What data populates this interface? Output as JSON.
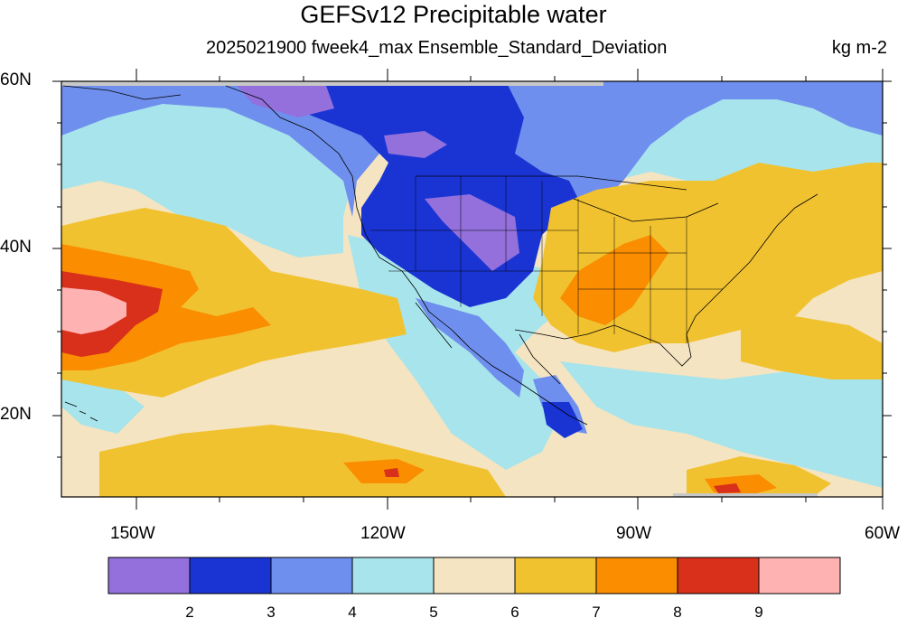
{
  "title": "GEFSv12 Precipitable water",
  "subtitle": "2025021900 fweek4_max Ensemble_Standard_Deviation",
  "units": "kg m-2",
  "lat_labels": [
    "60N",
    "40N",
    "20N"
  ],
  "lon_labels": [
    "150W",
    "120W",
    "90W",
    "60W"
  ],
  "legend": {
    "colors": [
      "#9370db",
      "#1a34d4",
      "#6f8fee",
      "#a8e4ec",
      "#f4e4c1",
      "#f1c230",
      "#fa8d00",
      "#d8301b",
      "#ffb2b2"
    ],
    "tick_labels": [
      "2",
      "3",
      "4",
      "5",
      "6",
      "7",
      "8",
      "9"
    ]
  },
  "map": {
    "extent": {
      "lon_min": -159,
      "lon_max": -60,
      "lat_min": 10,
      "lat_max": 60
    },
    "ocean_base_color": "#f4e4c1",
    "field_regions": [
      {
        "level": "light-cyan",
        "color": "#a8e4ec"
      },
      {
        "level": "medium-blue",
        "color": "#6f8fee"
      },
      {
        "level": "dark-blue",
        "color": "#1a34d4"
      },
      {
        "level": "purple",
        "color": "#9370db"
      },
      {
        "level": "gold",
        "color": "#f1c230"
      },
      {
        "level": "orange",
        "color": "#fa8d00"
      },
      {
        "level": "red",
        "color": "#d8301b"
      },
      {
        "level": "pink",
        "color": "#ffb2b2"
      }
    ]
  }
}
